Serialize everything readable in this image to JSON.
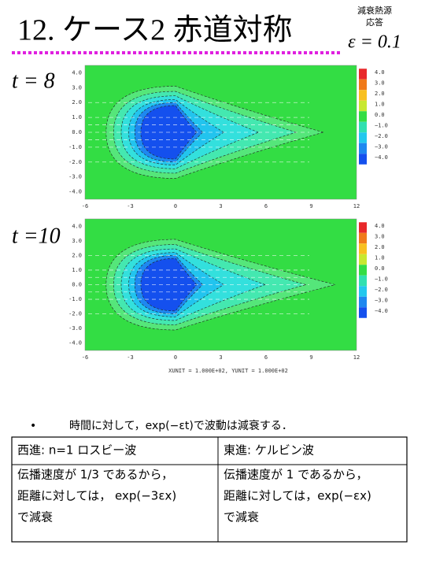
{
  "header": {
    "title": "12. ケース2 赤道対称",
    "note": [
      "減衰熱源",
      "応答"
    ],
    "epsilon": "ε = 0.1"
  },
  "plots": [
    {
      "label": "t = 8"
    },
    {
      "label": "t =10"
    }
  ],
  "xtick_labels": [
    "-6",
    "-3",
    "0",
    "3",
    "6",
    "9",
    "12"
  ],
  "ytick_labels": [
    "4.0",
    "3.0",
    "2.0",
    "1.0",
    "0.0",
    "-1.0",
    "-2.0",
    "-3.0",
    "-4.0"
  ],
  "colorbar_labels": [
    "4.0",
    "3.0",
    "2.0",
    "1.0",
    "0.0",
    "−1.0",
    "−2.0",
    "−3.0",
    "−4.0"
  ],
  "footer": "XUNIT = 1.000E+02, YUNIT = 1.000E+02",
  "bullet": "時間に対して，exp(−εt)で波動は減衰する．",
  "table": {
    "rows": [
      [
        [
          "西進: n=1 ロスビー波"
        ],
        [
          "東進: ケルビン波"
        ]
      ],
      [
        [
          "伝播速度が 1/3 であるから，",
          "距離に対しては，  exp(−3εx)",
          "で減衰"
        ],
        [
          "伝播速度が 1 であるから，",
          "距離に対しては，exp(−εx)",
          "で減衰"
        ]
      ]
    ]
  }
}
